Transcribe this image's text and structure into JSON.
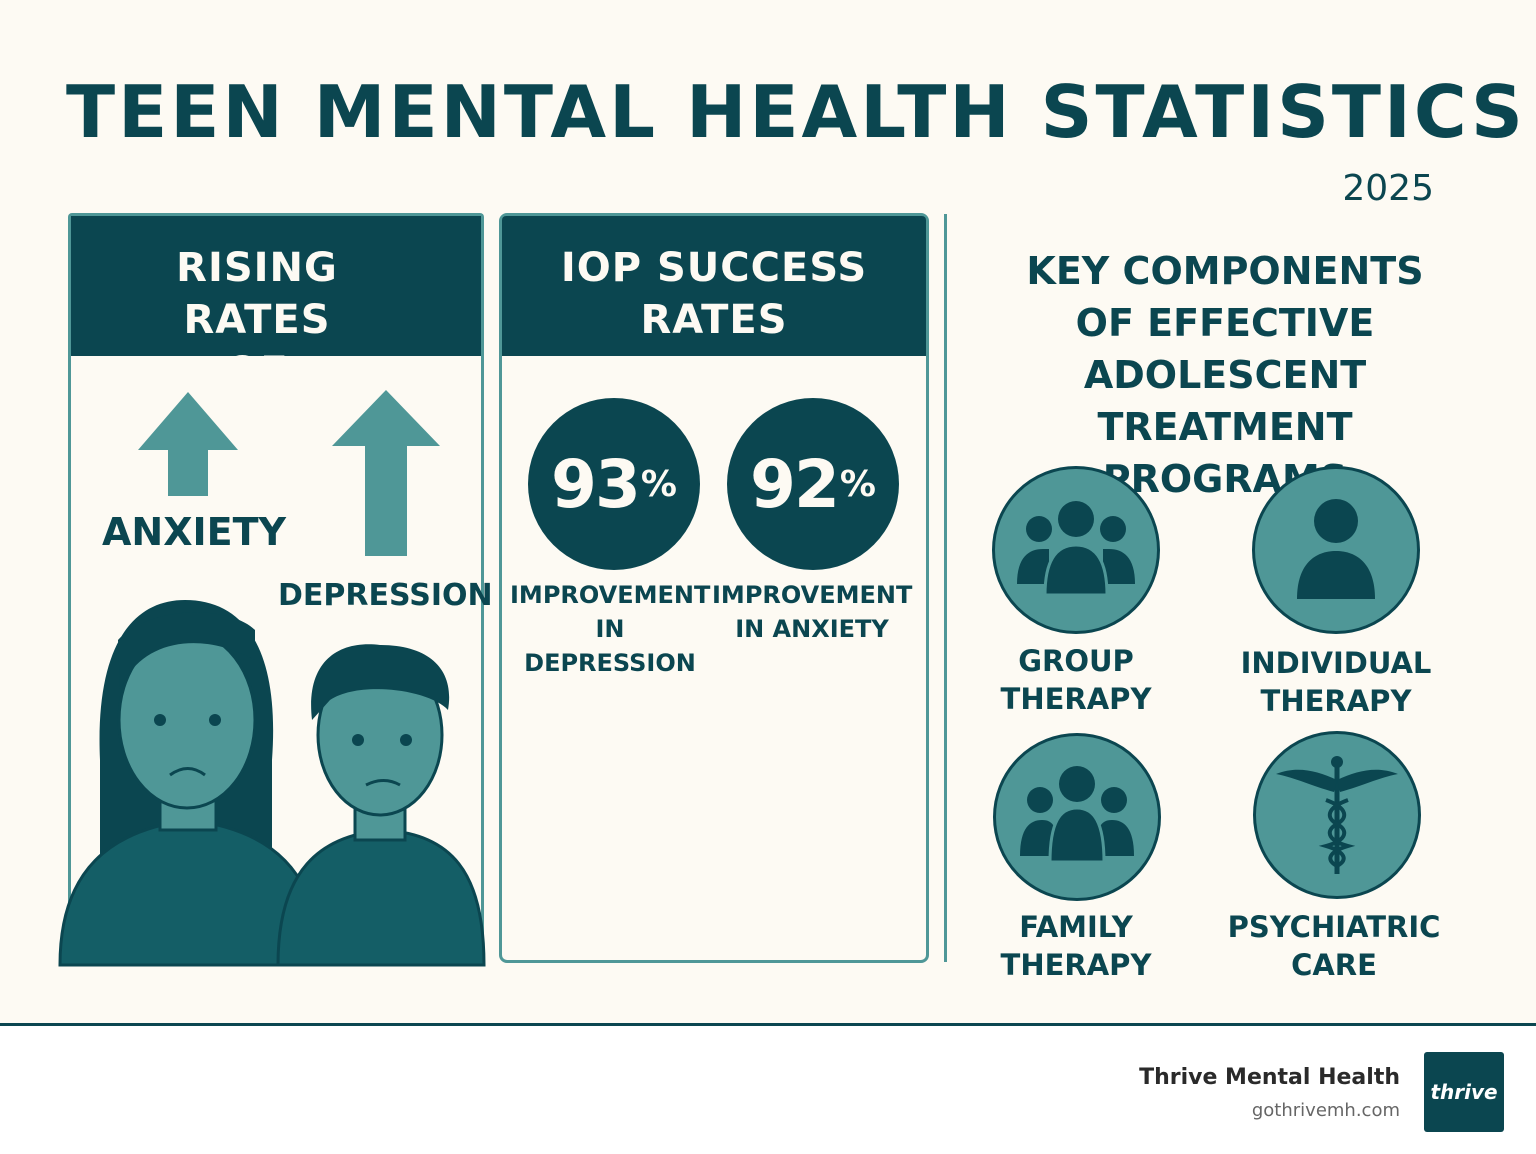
{
  "header": {
    "title": "TEEN MENTAL HEALTH STATISTICS",
    "year": "2025"
  },
  "rising": {
    "heading_line1": "RISING RATES",
    "heading_line2": "OF",
    "anxiety": "ANXIETY",
    "depression": "DEPRESSION"
  },
  "iop": {
    "heading_line1": "IOP SUCCESS",
    "heading_line2": "RATES",
    "stats": [
      {
        "value": "93",
        "unit": "%",
        "label_line1": "IMPROVEMENT",
        "label_line2": "IN DEPRESSION"
      },
      {
        "value": "92",
        "unit": "%",
        "label_line1": "IMPROVEMENT",
        "label_line2": "IN ANXIETY"
      }
    ]
  },
  "components": {
    "heading_lines": [
      "KEY COMPONENTS",
      "OF EFFECTIVE",
      "ADOLESCENT TREATMENT",
      "PROGRAMS"
    ],
    "items": [
      {
        "icon": "group-icon",
        "line1": "GROUP",
        "line2": "THERAPY"
      },
      {
        "icon": "person-icon",
        "line1": "INDIVIDUAL",
        "line2": "THERAPY"
      },
      {
        "icon": "family-icon",
        "line1": "FAMILY",
        "line2": "THERAPY"
      },
      {
        "icon": "caduceus-icon",
        "line1": "PSYCHIATRIC",
        "line2": "CARE"
      }
    ]
  },
  "footer": {
    "brand": "Thrive Mental Health",
    "url": "gothrivemh.com",
    "logo_text": "thrive"
  },
  "colors": {
    "dark_teal": "#0b4650",
    "mid_teal": "#4f9797",
    "background": "#fdfaf3"
  }
}
